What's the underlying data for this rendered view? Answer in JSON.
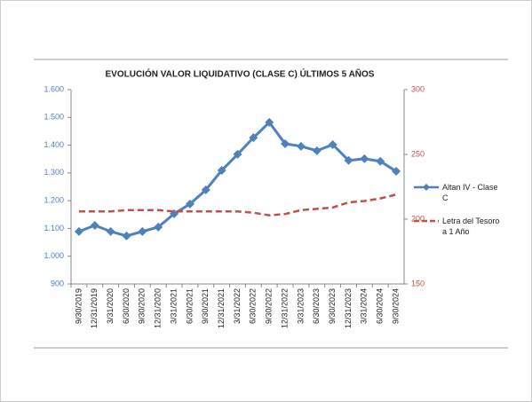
{
  "chart_data": {
    "type": "line",
    "title": "EVOLUCIÓN VALOR LIQUIDATIVO (CLASE C) ÚLTIMOS 5 AÑOS",
    "categories": [
      "9/30/2019",
      "12/31/2019",
      "3/31/2020",
      "6/30/2020",
      "9/30/2020",
      "12/31/2020",
      "3/31/2021",
      "6/30/2021",
      "9/30/2021",
      "12/31/2021",
      "3/31/2022",
      "6/30/2022",
      "9/30/2022",
      "12/31/2022",
      "3/31/2023",
      "6/30/2023",
      "9/30/2023",
      "12/31/2023",
      "3/31/2024",
      "6/30/2024",
      "9/30/2024"
    ],
    "series": [
      {
        "name": "Altan IV - Clase C",
        "color": "#4f81bd",
        "values": [
          1089,
          1111,
          1089,
          1073,
          1089,
          1105,
          1153,
          1188,
          1239,
          1309,
          1367,
          1427,
          1482,
          1405,
          1396,
          1380,
          1402,
          1345,
          1351,
          1342,
          1306
        ]
      },
      {
        "name": "Letra del Tesoro a 1 Año",
        "color": "#c0504d",
        "axis": "y2",
        "values": [
          206,
          206,
          206,
          207,
          207,
          207,
          206,
          206,
          206,
          206,
          206,
          205,
          203,
          204,
          207,
          208,
          209,
          213,
          214,
          216,
          219
        ]
      }
    ],
    "ylim": [
      900,
      1600
    ],
    "yticks": [
      900,
      {
        "value": 1000,
        "label": "1.000"
      },
      {
        "value": 1100,
        "label": "1.100"
      },
      {
        "value": 1200,
        "label": "1.200"
      },
      {
        "value": 1300,
        "label": "1.300"
      },
      {
        "value": 1400,
        "label": "1.400"
      },
      {
        "value": 1500,
        "label": "1.500"
      },
      {
        "value": 1600,
        "label": "1.600"
      }
    ],
    "y2lim": [
      150,
      300
    ],
    "y2ticks": [
      150,
      200,
      250,
      300
    ],
    "legend": "right"
  }
}
